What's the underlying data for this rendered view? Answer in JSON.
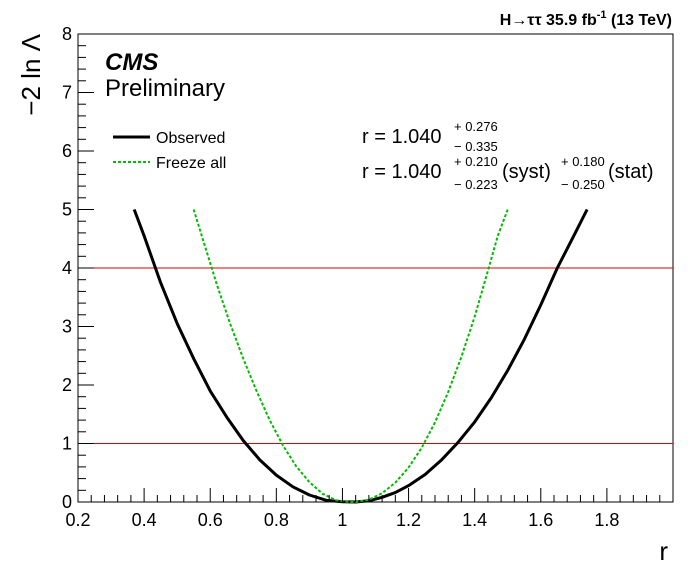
{
  "chart_data": {
    "type": "line",
    "top_label": {
      "prefix": "H→ττ 35.9 fb",
      "sup": "-1",
      "suffix": " (13 TeV)"
    },
    "experiment": "CMS",
    "status": "Preliminary",
    "xlabel": "r",
    "ylabel": "−2 ln Λ",
    "xlim": [
      0.2,
      2.0
    ],
    "ylim": [
      0,
      8
    ],
    "x_ticks": [
      "0.2",
      "0.4",
      "0.6",
      "0.8",
      "1",
      "1.2",
      "1.4",
      "1.6",
      "1.8"
    ],
    "y_ticks": [
      "0",
      "1",
      "2",
      "3",
      "4",
      "5",
      "6",
      "7",
      "8"
    ],
    "reference_lines": [
      1,
      4
    ],
    "legend_position": "top-left",
    "series": [
      {
        "name": "Observed",
        "color": "#000000",
        "style": "solid",
        "x": [
          0.37,
          0.4,
          0.45,
          0.5,
          0.55,
          0.6,
          0.65,
          0.7,
          0.75,
          0.8,
          0.85,
          0.9,
          0.95,
          1.0,
          1.04,
          1.08,
          1.12,
          1.16,
          1.2,
          1.25,
          1.3,
          1.35,
          1.4,
          1.45,
          1.5,
          1.55,
          1.6,
          1.65,
          1.7,
          1.74
        ],
        "y": [
          5.0,
          4.55,
          3.75,
          3.05,
          2.45,
          1.9,
          1.45,
          1.05,
          0.72,
          0.46,
          0.26,
          0.12,
          0.03,
          0.005,
          0.0,
          0.02,
          0.08,
          0.16,
          0.28,
          0.47,
          0.72,
          1.02,
          1.37,
          1.78,
          2.25,
          2.78,
          3.37,
          4.0,
          4.55,
          5.0
        ],
        "central": 1.04,
        "up": 0.276,
        "down": 0.335
      },
      {
        "name": "Freeze all",
        "color": "#00bb00",
        "style": "dashed",
        "x": [
          0.55,
          0.58,
          0.62,
          0.66,
          0.7,
          0.74,
          0.78,
          0.82,
          0.86,
          0.9,
          0.94,
          0.98,
          1.02,
          1.04,
          1.08,
          1.12,
          1.16,
          1.2,
          1.24,
          1.28,
          1.32,
          1.36,
          1.4,
          1.44,
          1.47,
          1.5
        ],
        "y": [
          5.0,
          4.45,
          3.72,
          3.05,
          2.45,
          1.9,
          1.4,
          0.97,
          0.61,
          0.34,
          0.14,
          0.03,
          0.0,
          0.0,
          0.04,
          0.15,
          0.33,
          0.59,
          0.93,
          1.36,
          1.88,
          2.48,
          3.17,
          3.95,
          4.55,
          5.0
        ],
        "syst_up": 0.21,
        "syst_down": 0.223,
        "stat_up": 0.18,
        "stat_down": 0.25
      }
    ],
    "annotations": {
      "line1": {
        "text": "r = 1.040",
        "up": "+ 0.276",
        "down": "− 0.335"
      },
      "line2": {
        "text": "r = 1.040",
        "syst_up": "+ 0.210",
        "syst_down": "− 0.223",
        "syst_label": "(syst)",
        "stat_up": "+ 0.180",
        "stat_down": "− 0.250",
        "stat_label": "(stat)"
      }
    }
  }
}
